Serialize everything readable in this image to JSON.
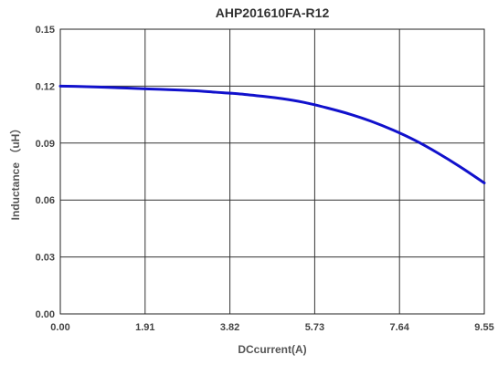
{
  "chart_data": {
    "type": "line",
    "title": "AHP201610FA-R12",
    "xlabel": "DCcurrent(A)",
    "ylabel": "Inductance （uH）",
    "xlim": [
      0,
      9.55
    ],
    "ylim": [
      0,
      0.15
    ],
    "x_tick_labels": [
      "0.00",
      "1.91",
      "3.82",
      "5.73",
      "7.64",
      "9.55"
    ],
    "x_ticks": [
      0,
      1.91,
      3.82,
      5.73,
      7.64,
      9.55
    ],
    "y_tick_labels": [
      "0.00",
      "0.03",
      "0.06",
      "0.09",
      "0.12",
      "0.15"
    ],
    "y_ticks": [
      0,
      0.03,
      0.06,
      0.09,
      0.12,
      0.15
    ],
    "grid": true,
    "series": [
      {
        "color": "#1111cc",
        "x": [
          0.0,
          0.5,
          1.0,
          1.5,
          2.0,
          2.5,
          3.0,
          3.5,
          4.0,
          4.5,
          5.0,
          5.5,
          6.0,
          6.5,
          7.0,
          7.5,
          8.0,
          8.5,
          9.0,
          9.55
        ],
        "y": [
          0.12,
          0.1198,
          0.1194,
          0.119,
          0.1185,
          0.1181,
          0.1176,
          0.1168,
          0.116,
          0.1148,
          0.1134,
          0.1114,
          0.1086,
          0.1054,
          0.1015,
          0.0968,
          0.0913,
          0.0848,
          0.0776,
          0.069
        ]
      }
    ]
  }
}
